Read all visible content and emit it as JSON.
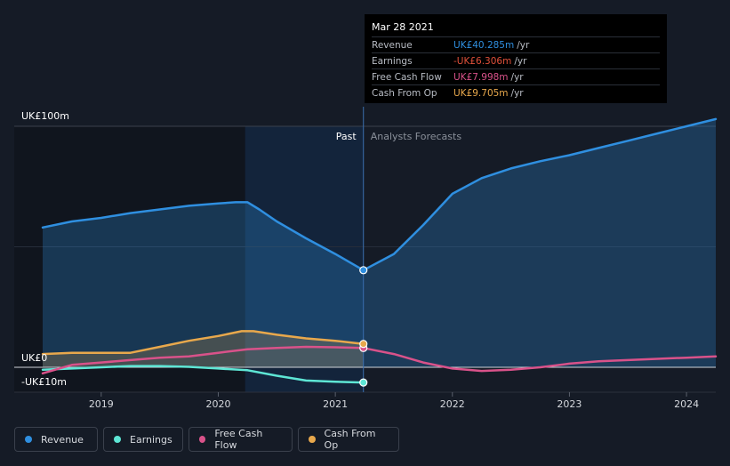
{
  "chart_data": {
    "type": "line",
    "title": "",
    "y_axis_labels": [
      "UK£100m",
      "UK£0",
      "-UK£10m"
    ],
    "ylim": [
      -10,
      100
    ],
    "xlim": [
      2018.5,
      2024.25
    ],
    "x_tick_labels": [
      "2019",
      "2020",
      "2021",
      "2022",
      "2023",
      "2024"
    ],
    "x_ticks": [
      2019,
      2020,
      2021,
      2022,
      2023,
      2024
    ],
    "divider_x": 2021.24,
    "highlight_start": 2020.23,
    "past_label": "Past",
    "forecast_label": "Analysts Forecasts",
    "series": [
      {
        "name": "Revenue",
        "color": "#2f8fe0",
        "fill": true,
        "points": [
          [
            2018.5,
            58
          ],
          [
            2018.75,
            60.5
          ],
          [
            2019,
            62
          ],
          [
            2019.25,
            64
          ],
          [
            2019.5,
            65.5
          ],
          [
            2019.75,
            67
          ],
          [
            2020,
            68
          ],
          [
            2020.15,
            68.5
          ],
          [
            2020.25,
            68.5
          ],
          [
            2020.35,
            65.5
          ],
          [
            2020.5,
            60.5
          ],
          [
            2020.75,
            53.5
          ],
          [
            2021,
            47
          ],
          [
            2021.24,
            40.285
          ],
          [
            2021.5,
            47
          ],
          [
            2021.75,
            59
          ],
          [
            2022,
            72
          ],
          [
            2022.25,
            78.5
          ],
          [
            2022.5,
            82.5
          ],
          [
            2022.75,
            85.5
          ],
          [
            2023,
            88
          ],
          [
            2023.25,
            91
          ],
          [
            2023.5,
            94
          ],
          [
            2023.75,
            97
          ],
          [
            2024,
            100
          ],
          [
            2024.25,
            103
          ]
        ]
      },
      {
        "name": "Earnings",
        "color": "#5ee6d5",
        "fill": false,
        "points": [
          [
            2018.5,
            -1
          ],
          [
            2018.75,
            -0.5
          ],
          [
            2019,
            0
          ],
          [
            2019.25,
            0.5
          ],
          [
            2019.5,
            0.5
          ],
          [
            2019.75,
            0.2
          ],
          [
            2020,
            -0.5
          ],
          [
            2020.25,
            -1.2
          ],
          [
            2020.5,
            -3.5
          ],
          [
            2020.75,
            -5.5
          ],
          [
            2021,
            -6
          ],
          [
            2021.24,
            -6.306
          ]
        ]
      },
      {
        "name": "Free Cash Flow",
        "color": "#d9528a",
        "fill": false,
        "points": [
          [
            2018.5,
            -2.5
          ],
          [
            2018.75,
            1
          ],
          [
            2019,
            2
          ],
          [
            2019.25,
            3
          ],
          [
            2019.5,
            4
          ],
          [
            2019.75,
            4.5
          ],
          [
            2020,
            6
          ],
          [
            2020.25,
            7.5
          ],
          [
            2020.5,
            8
          ],
          [
            2020.75,
            8.5
          ],
          [
            2021,
            8.3
          ],
          [
            2021.24,
            7.998
          ],
          [
            2021.5,
            5.5
          ],
          [
            2021.75,
            2
          ],
          [
            2022,
            -0.5
          ],
          [
            2022.25,
            -1.5
          ],
          [
            2022.5,
            -1
          ],
          [
            2022.75,
            0
          ],
          [
            2023,
            1.5
          ],
          [
            2023.25,
            2.5
          ],
          [
            2023.5,
            3
          ],
          [
            2023.75,
            3.5
          ],
          [
            2024,
            4
          ],
          [
            2024.25,
            4.5
          ]
        ]
      },
      {
        "name": "Cash From Op",
        "color": "#e8a84c",
        "fill": true,
        "points": [
          [
            2018.5,
            5.5
          ],
          [
            2018.75,
            6
          ],
          [
            2019,
            6
          ],
          [
            2019.25,
            6
          ],
          [
            2019.5,
            8.5
          ],
          [
            2019.75,
            11
          ],
          [
            2020,
            13
          ],
          [
            2020.2,
            15
          ],
          [
            2020.3,
            15
          ],
          [
            2020.5,
            13.5
          ],
          [
            2020.75,
            12
          ],
          [
            2021,
            11
          ],
          [
            2021.24,
            9.705
          ]
        ]
      }
    ]
  },
  "tooltip": {
    "date": "Mar 28 2021",
    "rows": [
      {
        "label": "Revenue",
        "value": "UK£40.285m",
        "unit": "/yr",
        "color": "#2f8fe0"
      },
      {
        "label": "Earnings",
        "value": "-UK£6.306m",
        "unit": "/yr",
        "color": "#e0503a"
      },
      {
        "label": "Free Cash Flow",
        "value": "UK£7.998m",
        "unit": "/yr",
        "color": "#d9528a"
      },
      {
        "label": "Cash From Op",
        "value": "UK£9.705m",
        "unit": "/yr",
        "color": "#e8a84c"
      }
    ]
  },
  "legend": [
    {
      "label": "Revenue",
      "color": "#2f8fe0"
    },
    {
      "label": "Earnings",
      "color": "#5ee6d5"
    },
    {
      "label": "Free Cash Flow",
      "color": "#d9528a"
    },
    {
      "label": "Cash From Op",
      "color": "#e8a84c"
    }
  ]
}
